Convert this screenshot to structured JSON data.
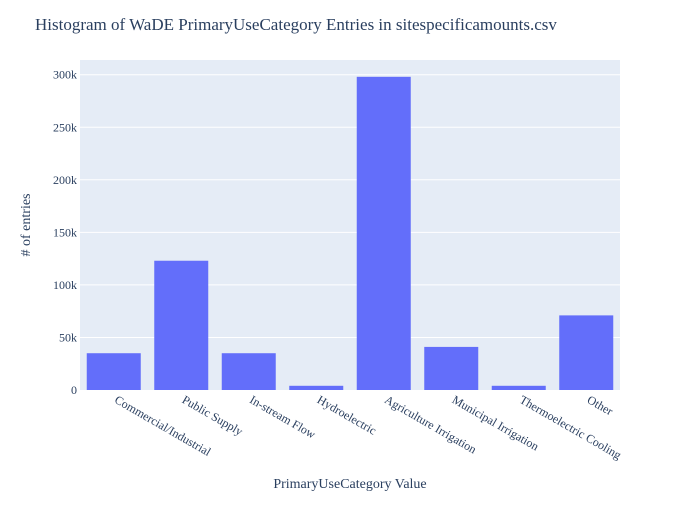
{
  "chart_data": {
    "type": "bar",
    "title": "Histogram of WaDE PrimaryUseCategory Entries in sitespecificamounts.csv",
    "xlabel": "PrimaryUseCategory Value",
    "ylabel": "# of entries",
    "categories": [
      "Commercial/Industrial",
      "Public Supply",
      "In-stream Flow",
      "Hydroelectric",
      "Agriculture Irrigation",
      "Municipal Irrigation",
      "Thermoelectric Cooling",
      "Other"
    ],
    "values": [
      35000,
      123000,
      35000,
      4000,
      298000,
      41000,
      4000,
      71000
    ],
    "ylim": [
      0,
      314000
    ],
    "yticks": [
      0,
      50000,
      100000,
      150000,
      200000,
      250000,
      300000
    ],
    "ytick_labels": [
      "0",
      "50k",
      "100k",
      "150k",
      "200k",
      "250k",
      "300k"
    ],
    "grid": true,
    "legend": "none",
    "colors": {
      "bar": "#636efa",
      "plot_bg": "#e5ecf6",
      "grid": "#ffffff",
      "text": "#2a3f5f"
    }
  }
}
